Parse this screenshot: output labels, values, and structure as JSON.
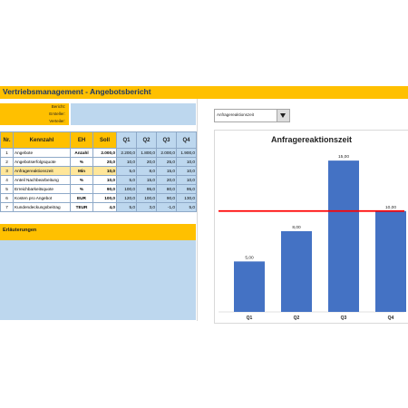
{
  "report": {
    "title": "Vertriebsmanagement - Angebotsbericht"
  },
  "meta": {
    "fields": [
      {
        "label": "Bericht:"
      },
      {
        "label": "Ersteller:"
      },
      {
        "label": "Verteiler:"
      }
    ]
  },
  "table": {
    "headers": [
      "Nr.",
      "Kennzahl",
      "EH",
      "Soll",
      "Q1",
      "Q2",
      "Q3",
      "Q4"
    ],
    "rows": [
      {
        "nr": "1",
        "kennzahl": "Angebote",
        "eh": "Anzahl",
        "soll": "2.000,0",
        "q1": "2.200,0",
        "q2": "1.800,0",
        "q3": "2.000,0",
        "q4": "1.900,0"
      },
      {
        "nr": "2",
        "kennzahl": "Angebotserfolgsquote",
        "eh": "%",
        "soll": "20,0",
        "q1": "10,0",
        "q2": "20,0",
        "q3": "25,0",
        "q4": "10,0"
      },
      {
        "nr": "3",
        "kennzahl": "Anfragereaktionszeit",
        "eh": "Min",
        "soll": "10,0",
        "q1": "5,0",
        "q2": "8,0",
        "q3": "15,0",
        "q4": "10,0"
      },
      {
        "nr": "4",
        "kennzahl": "Anteil Nachbearbeitung",
        "eh": "%",
        "soll": "10,0",
        "q1": "5,0",
        "q2": "15,0",
        "q3": "20,0",
        "q4": "10,0"
      },
      {
        "nr": "5",
        "kennzahl": "Erreichbarkeitsquote",
        "eh": "%",
        "soll": "90,0",
        "q1": "100,0",
        "q2": "95,0",
        "q3": "80,0",
        "q4": "95,0"
      },
      {
        "nr": "6",
        "kennzahl": "Kosten pro Angebot",
        "eh": "EUR",
        "soll": "100,0",
        "q1": "120,0",
        "q2": "100,0",
        "q3": "90,0",
        "q4": "130,0"
      },
      {
        "nr": "7",
        "kennzahl": "Kundendeckungsbeitrag",
        "eh": "TEUR",
        "soll": "4,0",
        "q1": "5,0",
        "q2": "3,0",
        "q3": "-1,0",
        "q4": "5,0"
      }
    ]
  },
  "notes": {
    "title": "Erläuterungen"
  },
  "selector": {
    "value": "Anfragereaktionszeit"
  },
  "colors": {
    "bar": "#4472c4",
    "target": "#ff0000",
    "accent": "#ffc000",
    "cell": "#bdd7ee",
    "highlight": "#ffe699"
  },
  "chart_data": {
    "type": "bar",
    "title": "Anfragereaktionszeit",
    "categories": [
      "Q1",
      "Q2",
      "Q3",
      "Q4"
    ],
    "values": [
      5,
      8,
      15,
      10
    ],
    "value_labels": [
      "5,00",
      "8,00",
      "15,00",
      "10,00"
    ],
    "target": 10,
    "ylim": [
      0,
      16
    ],
    "legend": "none",
    "grid": false
  }
}
